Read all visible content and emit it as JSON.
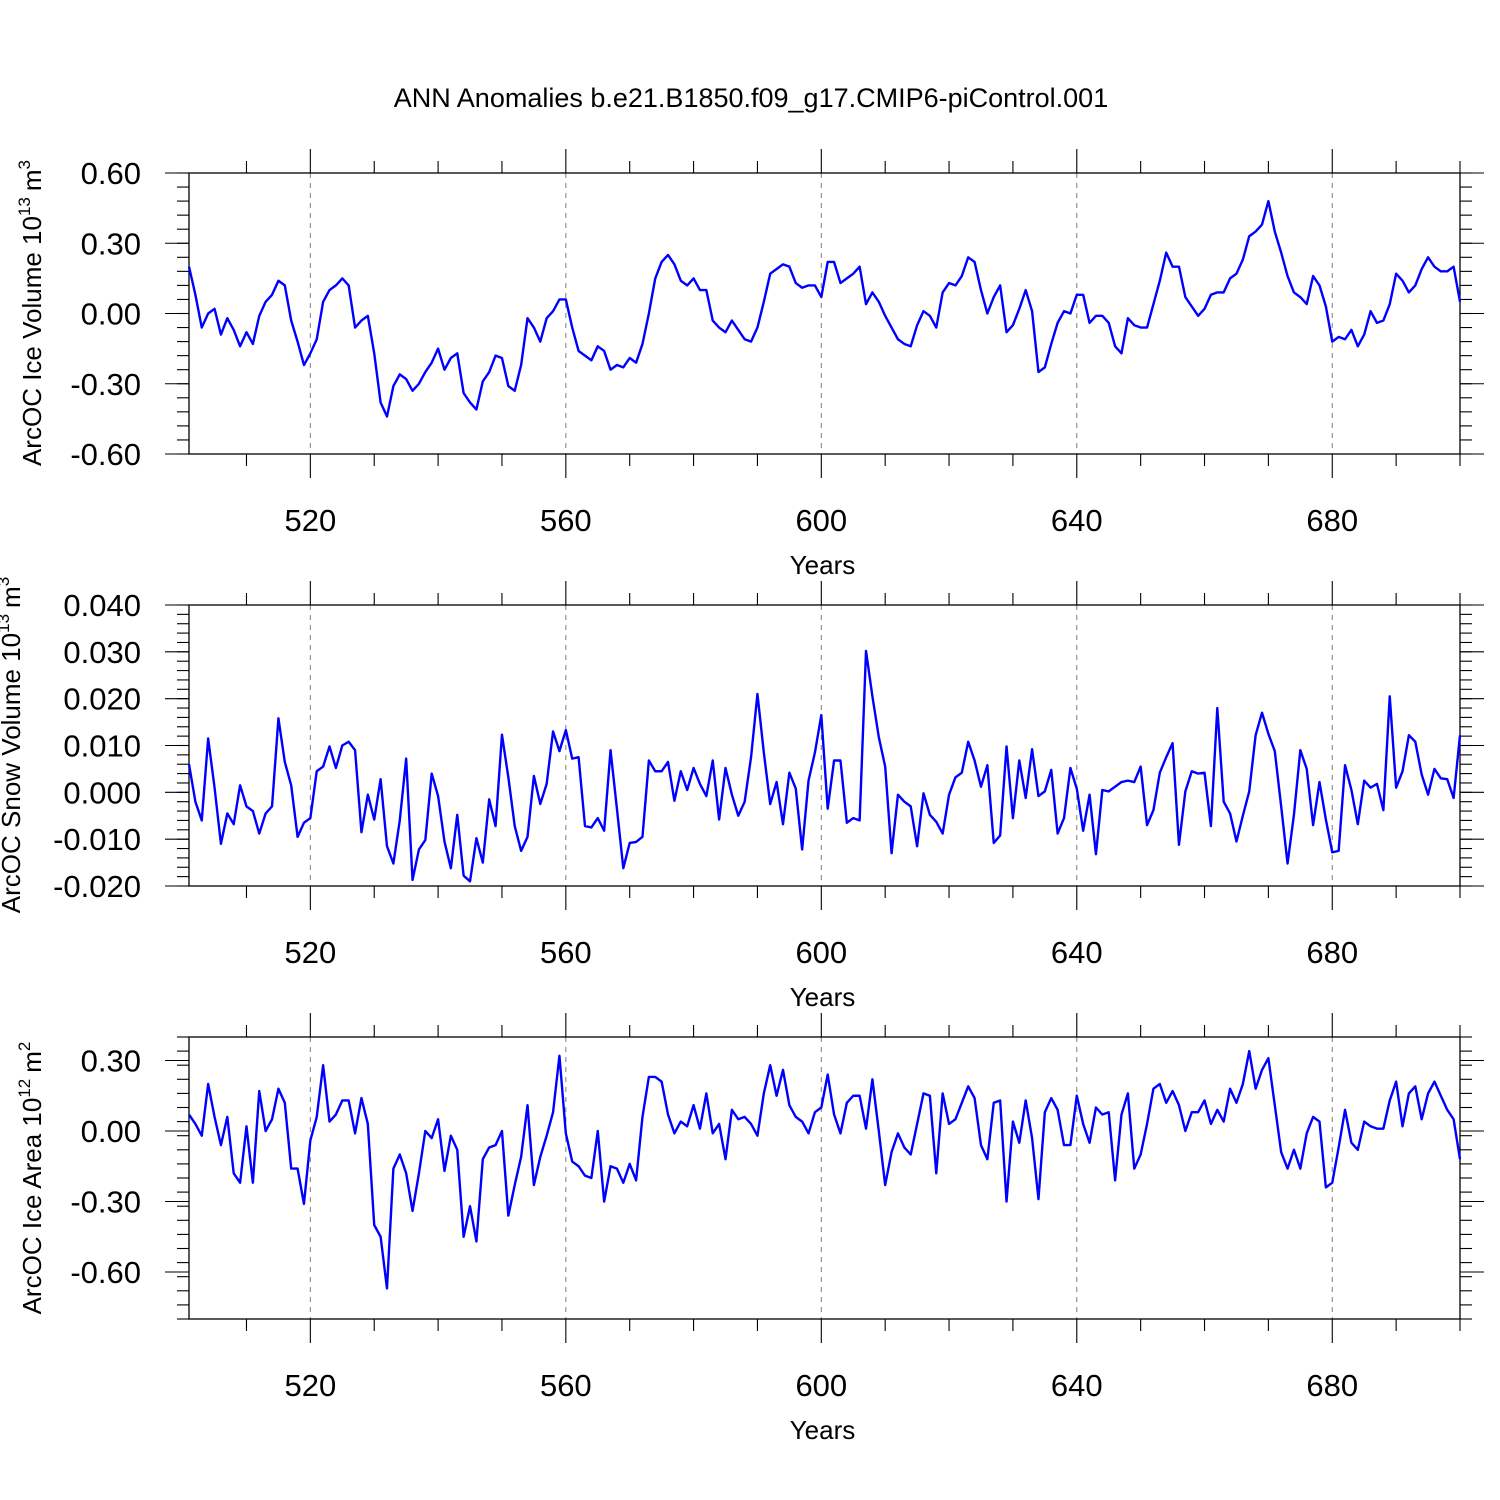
{
  "title": "ANN Anomalies b.e21.B1850.f09_g17.CMIP6-piControl.001",
  "chart_data": [
    {
      "type": "line",
      "xlabel": "Years",
      "ylabel": "ArcOC Ice Volume 10",
      "ylabel_exp": "13",
      "ylabel_unit": "m",
      "ylabel_unit_exp": "3",
      "xlim": [
        501,
        700
      ],
      "ylim": [
        -0.6,
        0.6
      ],
      "xticks": [
        520,
        560,
        600,
        640,
        680
      ],
      "xtick_labels": [
        "520",
        "560",
        "600",
        "640",
        "680"
      ],
      "yticks": [
        -0.6,
        -0.3,
        0.0,
        0.3,
        0.6
      ],
      "ytick_labels": [
        "-0.60",
        "-0.30",
        "0.00",
        "0.30",
        "0.60"
      ],
      "yminor_step": 0.06,
      "grid": "vertical dashed at major x ticks",
      "line_color": "#0000ff",
      "x_start": 501,
      "x_step": 1,
      "values": [
        0.2,
        0.08,
        -0.06,
        0.0,
        0.02,
        -0.09,
        -0.02,
        -0.07,
        -0.14,
        -0.08,
        -0.13,
        -0.01,
        0.05,
        0.08,
        0.14,
        0.12,
        -0.03,
        -0.12,
        -0.22,
        -0.17,
        -0.11,
        0.05,
        0.1,
        0.12,
        0.15,
        0.12,
        -0.06,
        -0.03,
        -0.01,
        -0.17,
        -0.38,
        -0.44,
        -0.31,
        -0.26,
        -0.28,
        -0.33,
        -0.3,
        -0.25,
        -0.21,
        -0.15,
        -0.24,
        -0.19,
        -0.17,
        -0.34,
        -0.38,
        -0.41,
        -0.29,
        -0.25,
        -0.18,
        -0.19,
        -0.31,
        -0.33,
        -0.22,
        -0.02,
        -0.06,
        -0.12,
        -0.02,
        0.01,
        0.06,
        0.06,
        -0.06,
        -0.16,
        -0.18,
        -0.2,
        -0.14,
        -0.16,
        -0.24,
        -0.22,
        -0.23,
        -0.19,
        -0.21,
        -0.13,
        0.0,
        0.15,
        0.22,
        0.25,
        0.21,
        0.14,
        0.12,
        0.15,
        0.1,
        0.1,
        -0.03,
        -0.06,
        -0.08,
        -0.03,
        -0.07,
        -0.11,
        -0.12,
        -0.06,
        0.05,
        0.17,
        0.19,
        0.21,
        0.2,
        0.13,
        0.11,
        0.12,
        0.12,
        0.07,
        0.22,
        0.22,
        0.13,
        0.15,
        0.17,
        0.2,
        0.04,
        0.09,
        0.05,
        -0.01,
        -0.06,
        -0.11,
        -0.13,
        -0.14,
        -0.05,
        0.01,
        -0.01,
        -0.06,
        0.09,
        0.13,
        0.12,
        0.16,
        0.24,
        0.22,
        0.1,
        0.0,
        0.07,
        0.12,
        -0.08,
        -0.05,
        0.02,
        0.1,
        0.01,
        -0.25,
        -0.23,
        -0.13,
        -0.04,
        0.01,
        0.0,
        0.08,
        0.08,
        -0.04,
        -0.01,
        -0.01,
        -0.04,
        -0.14,
        -0.17,
        -0.02,
        -0.05,
        -0.06,
        -0.06,
        0.04,
        0.14,
        0.26,
        0.2,
        0.2,
        0.07,
        0.03,
        -0.01,
        0.02,
        0.08,
        0.09,
        0.09,
        0.15,
        0.17,
        0.23,
        0.33,
        0.35,
        0.38,
        0.48,
        0.35,
        0.26,
        0.16,
        0.09,
        0.07,
        0.04,
        0.16,
        0.12,
        0.03,
        -0.12,
        -0.1,
        -0.11,
        -0.07,
        -0.14,
        -0.09,
        0.01,
        -0.04,
        -0.03,
        0.04,
        0.17,
        0.14,
        0.09,
        0.12,
        0.19,
        0.24,
        0.2,
        0.18,
        0.18,
        0.2,
        0.05
      ]
    },
    {
      "type": "line",
      "xlabel": "Years",
      "ylabel": "ArcOC Snow Volume 10",
      "ylabel_exp": "13",
      "ylabel_unit": "m",
      "ylabel_unit_exp": "3",
      "xlim": [
        501,
        700
      ],
      "ylim": [
        -0.02,
        0.04
      ],
      "xticks": [
        520,
        560,
        600,
        640,
        680
      ],
      "xtick_labels": [
        "520",
        "560",
        "600",
        "640",
        "680"
      ],
      "yticks": [
        -0.02,
        -0.01,
        0.0,
        0.01,
        0.02,
        0.03,
        0.04
      ],
      "ytick_labels": [
        "-0.020",
        "-0.010",
        "0.000",
        "0.010",
        "0.020",
        "0.030",
        "0.040"
      ],
      "yminor_step": 0.002,
      "grid": "vertical dashed at major x ticks",
      "line_color": "#0000ff",
      "x_start": 501,
      "x_step": 1,
      "values": [
        0.006,
        -0.002,
        -0.006,
        0.0115,
        0.001,
        -0.011,
        -0.0045,
        -0.0068,
        0.0015,
        -0.003,
        -0.004,
        -0.0088,
        -0.0045,
        -0.003,
        0.0158,
        0.0065,
        0.0015,
        -0.0095,
        -0.0065,
        -0.0055,
        0.0045,
        0.0055,
        0.0098,
        0.0052,
        0.01,
        0.0108,
        0.009,
        -0.0085,
        -0.0005,
        -0.0058,
        0.0028,
        -0.0115,
        -0.0152,
        -0.006,
        0.0072,
        -0.0187,
        -0.0122,
        -0.0102,
        0.004,
        -0.0008,
        -0.0105,
        -0.0162,
        -0.0048,
        -0.0178,
        -0.019,
        -0.0098,
        -0.015,
        -0.0015,
        -0.0072,
        0.0123,
        0.0032,
        -0.0072,
        -0.0125,
        -0.0095,
        0.0035,
        -0.0025,
        0.0018,
        0.013,
        0.0088,
        0.0133,
        0.0072,
        0.0075,
        -0.0072,
        -0.0075,
        -0.0055,
        -0.0082,
        0.009,
        -0.0035,
        -0.0162,
        -0.0108,
        -0.0106,
        -0.0095,
        0.0068,
        0.0045,
        0.0045,
        0.0065,
        -0.0018,
        0.0045,
        0.0005,
        0.0052,
        0.0018,
        -0.0008,
        0.0068,
        -0.0058,
        0.0052,
        -0.0005,
        -0.005,
        -0.002,
        0.0075,
        0.021,
        0.0085,
        -0.0025,
        0.0022,
        -0.0068,
        0.0042,
        0.0008,
        -0.0122,
        0.0025,
        0.0085,
        0.0165,
        -0.0035,
        0.0068,
        0.0068,
        -0.0065,
        -0.0055,
        -0.006,
        0.0302,
        0.0205,
        0.0118,
        0.0055,
        -0.013,
        -0.0005,
        -0.002,
        -0.003,
        -0.0115,
        -0.0002,
        -0.0048,
        -0.0063,
        -0.0088,
        -0.0005,
        0.0032,
        0.0042,
        0.0108,
        0.0068,
        0.0012,
        0.0058,
        -0.0108,
        -0.0092,
        0.0098,
        -0.0055,
        0.0068,
        -0.0012,
        0.0092,
        -0.0008,
        0.0002,
        0.0048,
        -0.0088,
        -0.0055,
        0.0052,
        0.0008,
        -0.0082,
        -0.0005,
        -0.0132,
        0.0005,
        0.0002,
        0.0012,
        0.0022,
        0.0025,
        0.0022,
        0.0055,
        -0.007,
        -0.0038,
        0.0042,
        0.0075,
        0.0105,
        -0.0112,
        0.0002,
        0.0045,
        0.004,
        0.0042,
        -0.0072,
        0.018,
        -0.002,
        -0.0045,
        -0.0105,
        -0.005,
        0.0002,
        0.0122,
        0.017,
        0.0125,
        0.0088,
        -0.003,
        -0.0152,
        -0.0048,
        0.009,
        0.005,
        -0.007,
        0.0022,
        -0.0058,
        -0.0128,
        -0.0125,
        0.0058,
        0.0005,
        -0.0068,
        0.0025,
        0.001,
        0.0018,
        -0.0038,
        0.0205,
        0.001,
        0.0045,
        0.0122,
        0.0108,
        0.0038,
        -0.0005,
        0.005,
        0.003,
        0.0028,
        -0.0012,
        0.0122
      ]
    },
    {
      "type": "line",
      "xlabel": "Years",
      "ylabel": "ArcOC Ice Area 10",
      "ylabel_exp": "12",
      "ylabel_unit": "m",
      "ylabel_unit_exp": "2",
      "xlim": [
        501,
        700
      ],
      "ylim": [
        -0.8,
        0.4
      ],
      "xticks": [
        520,
        560,
        600,
        640,
        680
      ],
      "xtick_labels": [
        "520",
        "560",
        "600",
        "640",
        "680"
      ],
      "yticks": [
        -0.6,
        -0.3,
        0.0,
        0.3
      ],
      "ytick_labels": [
        "-0.60",
        "-0.30",
        "0.00",
        "0.30"
      ],
      "yminor_step": 0.06,
      "grid": "vertical dashed at major x ticks",
      "line_color": "#0000ff",
      "x_start": 501,
      "x_step": 1,
      "values": [
        0.07,
        0.03,
        -0.02,
        0.2,
        0.06,
        -0.06,
        0.06,
        -0.18,
        -0.22,
        0.02,
        -0.22,
        0.17,
        0.0,
        0.05,
        0.18,
        0.12,
        -0.16,
        -0.16,
        -0.31,
        -0.04,
        0.06,
        0.28,
        0.04,
        0.07,
        0.13,
        0.13,
        -0.01,
        0.14,
        0.03,
        -0.4,
        -0.45,
        -0.67,
        -0.16,
        -0.1,
        -0.18,
        -0.34,
        -0.18,
        0.0,
        -0.03,
        0.05,
        -0.17,
        -0.02,
        -0.08,
        -0.45,
        -0.32,
        -0.47,
        -0.12,
        -0.07,
        -0.06,
        0.0,
        -0.36,
        -0.23,
        -0.11,
        0.11,
        -0.23,
        -0.11,
        -0.02,
        0.08,
        0.32,
        -0.01,
        -0.13,
        -0.15,
        -0.19,
        -0.2,
        0.0,
        -0.3,
        -0.15,
        -0.16,
        -0.22,
        -0.14,
        -0.21,
        0.06,
        0.23,
        0.23,
        0.21,
        0.07,
        -0.01,
        0.04,
        0.02,
        0.11,
        0.01,
        0.16,
        -0.01,
        0.03,
        -0.12,
        0.09,
        0.05,
        0.06,
        0.03,
        -0.02,
        0.16,
        0.28,
        0.15,
        0.26,
        0.11,
        0.06,
        0.04,
        -0.01,
        0.08,
        0.1,
        0.24,
        0.07,
        -0.01,
        0.12,
        0.15,
        0.15,
        0.01,
        0.22,
        0.0,
        -0.23,
        -0.09,
        -0.01,
        -0.07,
        -0.1,
        0.03,
        0.16,
        0.15,
        -0.18,
        0.16,
        0.03,
        0.05,
        0.12,
        0.19,
        0.14,
        -0.06,
        -0.12,
        0.12,
        0.13,
        -0.3,
        0.04,
        -0.05,
        0.13,
        -0.03,
        -0.29,
        0.08,
        0.14,
        0.09,
        -0.06,
        -0.06,
        0.15,
        0.03,
        -0.05,
        0.1,
        0.07,
        0.08,
        -0.21,
        0.07,
        0.16,
        -0.16,
        -0.1,
        0.03,
        0.18,
        0.2,
        0.12,
        0.17,
        0.11,
        0.0,
        0.08,
        0.08,
        0.13,
        0.03,
        0.09,
        0.04,
        0.18,
        0.12,
        0.2,
        0.34,
        0.18,
        0.26,
        0.31,
        0.11,
        -0.09,
        -0.16,
        -0.08,
        -0.16,
        -0.01,
        0.06,
        0.04,
        -0.24,
        -0.22,
        -0.07,
        0.09,
        -0.05,
        -0.08,
        0.04,
        0.02,
        0.01,
        0.01,
        0.13,
        0.21,
        0.02,
        0.16,
        0.19,
        0.05,
        0.16,
        0.21,
        0.15,
        0.09,
        0.05,
        -0.12
      ]
    }
  ]
}
